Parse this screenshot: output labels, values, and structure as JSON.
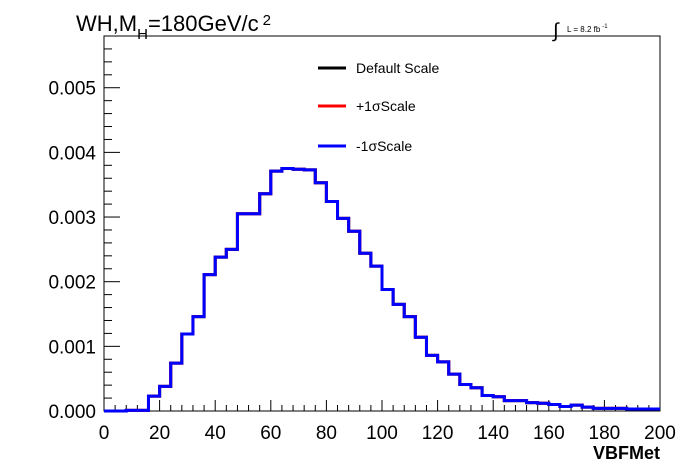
{
  "chart_data": {
    "type": "line",
    "title": "WH,M_H=180GeV/c^2",
    "title_parts": {
      "main": "WH,M",
      "sub": "H",
      "rest": "=180GeV/c",
      "sup": "2"
    },
    "lumi_label": {
      "integral": "∫",
      "text": "L = 8.2 fb",
      "sup": "-1"
    },
    "xlabel": "VBFMet",
    "ylabel": "",
    "xlim": [
      0,
      200
    ],
    "ylim": [
      0,
      0.0058
    ],
    "x_ticks": [
      "0",
      "20",
      "40",
      "60",
      "80",
      "100",
      "120",
      "140",
      "160",
      "180",
      "200"
    ],
    "y_ticks": [
      "0.000",
      "0.001",
      "0.002",
      "0.003",
      "0.004",
      "0.005"
    ],
    "grid": false,
    "legend_placement": "top-center",
    "bin_edges": [
      0,
      4,
      8,
      12,
      16,
      20,
      24,
      28,
      32,
      36,
      40,
      44,
      48,
      52,
      56,
      60,
      64,
      68,
      72,
      76,
      80,
      84,
      88,
      92,
      96,
      100,
      104,
      108,
      112,
      116,
      120,
      124,
      128,
      132,
      136,
      140,
      144,
      148,
      152,
      156,
      160,
      164,
      168,
      172,
      176,
      180,
      184,
      188,
      192,
      196,
      200
    ],
    "series": [
      {
        "name": "Default Scale",
        "color": "#000000",
        "values": [
          0.0,
          0.0,
          1e-05,
          1e-05,
          0.00023,
          0.00038,
          0.00074,
          0.00119,
          0.00146,
          0.00211,
          0.00238,
          0.0025,
          0.00305,
          0.00305,
          0.00336,
          0.00371,
          0.00375,
          0.00374,
          0.00373,
          0.00353,
          0.00324,
          0.00298,
          0.00278,
          0.00244,
          0.00224,
          0.00188,
          0.00165,
          0.00146,
          0.00114,
          0.00086,
          0.00076,
          0.00057,
          0.00041,
          0.00036,
          0.00024,
          0.00022,
          0.00016,
          0.00016,
          0.00013,
          0.00012,
          0.0001,
          7e-05,
          9e-05,
          6e-05,
          4e-05,
          4e-05,
          4e-05,
          3e-05,
          3e-05,
          3e-05
        ]
      },
      {
        "name": "+1σScale",
        "color": "#ff0000",
        "values": [
          0.0,
          0.0,
          1e-05,
          1e-05,
          0.00023,
          0.00038,
          0.00074,
          0.00119,
          0.00146,
          0.00211,
          0.00238,
          0.0025,
          0.00305,
          0.00305,
          0.00336,
          0.00371,
          0.00375,
          0.00374,
          0.00373,
          0.00353,
          0.00324,
          0.00298,
          0.00278,
          0.00244,
          0.00224,
          0.00188,
          0.00165,
          0.00146,
          0.00114,
          0.00086,
          0.00076,
          0.00057,
          0.00041,
          0.00036,
          0.00024,
          0.00022,
          0.00016,
          0.00016,
          0.00013,
          0.00012,
          0.0001,
          7e-05,
          9e-05,
          6e-05,
          4e-05,
          4e-05,
          4e-05,
          3e-05,
          3e-05,
          3e-05
        ]
      },
      {
        "name": "-1σScale",
        "color": "#0000ff",
        "values": [
          0.0,
          0.0,
          1e-05,
          1e-05,
          0.00023,
          0.00038,
          0.00074,
          0.00119,
          0.00146,
          0.00211,
          0.00238,
          0.0025,
          0.00305,
          0.00305,
          0.00336,
          0.00371,
          0.00375,
          0.00374,
          0.00373,
          0.00353,
          0.00324,
          0.00298,
          0.00278,
          0.00244,
          0.00224,
          0.00188,
          0.00165,
          0.00146,
          0.00114,
          0.00086,
          0.00076,
          0.00057,
          0.00041,
          0.00036,
          0.00024,
          0.00022,
          0.00016,
          0.00016,
          0.00013,
          0.00012,
          0.0001,
          7e-05,
          9e-05,
          6e-05,
          4e-05,
          4e-05,
          4e-05,
          3e-05,
          3e-05,
          3e-05
        ]
      }
    ]
  }
}
